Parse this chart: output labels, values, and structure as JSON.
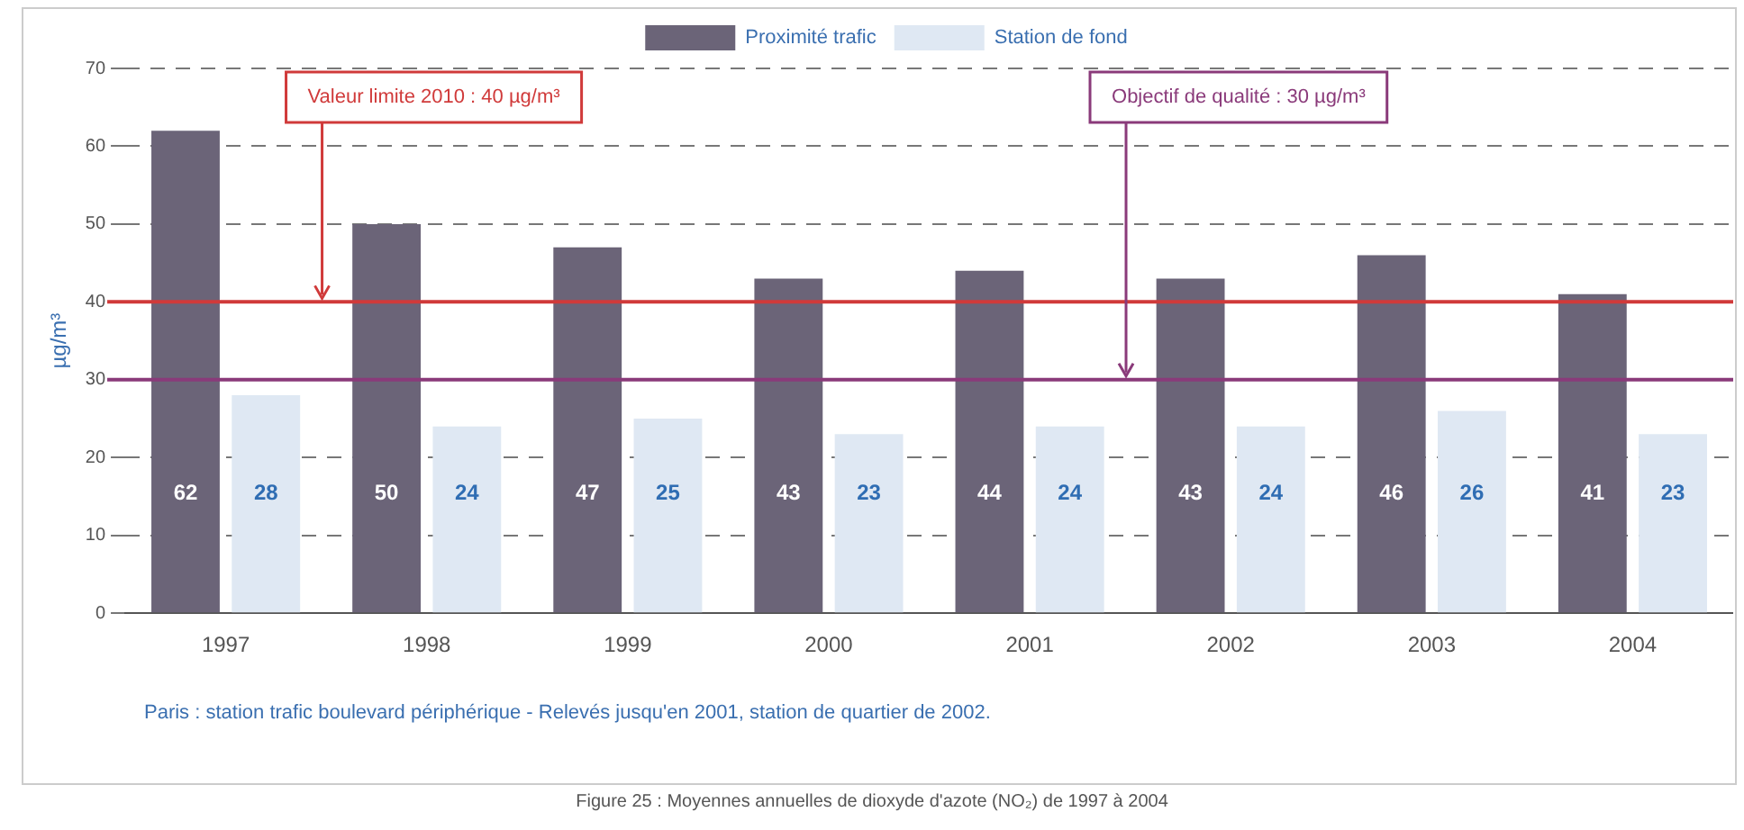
{
  "chart_data": {
    "type": "bar",
    "categories": [
      "1997",
      "1998",
      "1999",
      "2000",
      "2001",
      "2002",
      "2003",
      "2004"
    ],
    "series": [
      {
        "name": "Proximité trafic",
        "color": "#6b6478",
        "values": [
          62,
          50,
          47,
          43,
          44,
          43,
          46,
          41
        ]
      },
      {
        "name": "Station de fond",
        "color": "#dfe8f3",
        "values": [
          28,
          24,
          25,
          23,
          24,
          24,
          26,
          23
        ]
      }
    ],
    "ylabel": "µg/m³",
    "ylim": [
      0,
      70
    ],
    "yticks": [
      0,
      10,
      20,
      30,
      40,
      50,
      60,
      70
    ],
    "grid": "y",
    "legend": "top",
    "data_labels": true,
    "ref_lines": [
      {
        "axis": "y",
        "value": 40,
        "label": "Valeur limite 2010 : 40 µg/m³",
        "color": "#d03a3a"
      },
      {
        "axis": "y",
        "value": 30,
        "label": "Objectif de qualité : 30 µg/m³",
        "color": "#8a3a7a"
      }
    ],
    "annotations": [
      "Paris : station trafic boulevard périphérique - Relevés jusqu'en 2001, station de quartier de 2002.",
      "Figure 25 : Moyennes annuelles de dioxyde d'azote (NO₂) de 1997 à 2004"
    ]
  }
}
